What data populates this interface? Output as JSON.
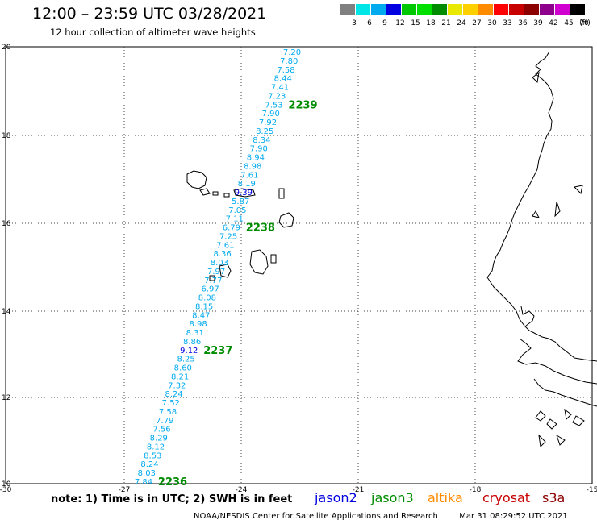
{
  "header": {
    "title": "12:00 – 23:59 UTC 03/28/2021",
    "subtitle": "12 hour collection of altimeter wave heights"
  },
  "colorbar": {
    "unit": "(ft)",
    "bins": [
      {
        "color": "#808080",
        "label": "3"
      },
      {
        "color": "#00e5e5",
        "label": "6"
      },
      {
        "color": "#00aaee",
        "label": "9"
      },
      {
        "color": "#0000e0",
        "label": "12"
      },
      {
        "color": "#00c800",
        "label": "15"
      },
      {
        "color": "#00e000",
        "label": "18"
      },
      {
        "color": "#008c00",
        "label": "21"
      },
      {
        "color": "#e8e800",
        "label": "24"
      },
      {
        "color": "#ffd000",
        "label": "27"
      },
      {
        "color": "#ff8c00",
        "label": "30"
      },
      {
        "color": "#ff0000",
        "label": "33"
      },
      {
        "color": "#c80000",
        "label": "36"
      },
      {
        "color": "#8c0000",
        "label": "39"
      },
      {
        "color": "#8c008c",
        "label": "42"
      },
      {
        "color": "#d000d0",
        "label": "45"
      },
      {
        "color": "#000000",
        "label": "70"
      }
    ]
  },
  "axes": {
    "x_ticks": [
      "-30",
      "-27",
      "-24",
      "-21",
      "-18",
      "-15"
    ],
    "y_ticks": [
      "20",
      "18",
      "16",
      "14",
      "12",
      "10"
    ]
  },
  "track": {
    "color_default": "#00aaee",
    "color_high": "#0000e0",
    "points": [
      "7.20",
      "7.80",
      "7.58",
      "8.44",
      "7.41",
      "7.23",
      "7.53",
      "7.90",
      "7.92",
      "8.25",
      "8.34",
      "7.90",
      "8.94",
      "8.98",
      "7.61",
      "8.19",
      "9.39",
      "5.87",
      "7.05",
      "7.11",
      "6.79",
      "7.25",
      "7.61",
      "8.36",
      "8.03",
      "7.97",
      "7.77",
      "6.97",
      "8.08",
      "8.15",
      "8.47",
      "8.98",
      "8.31",
      "8.86",
      "9.12",
      "8.25",
      "8.60",
      "8.21",
      "7.32",
      "8.24",
      "7.52",
      "7.58",
      "7.79",
      "7.56",
      "8.29",
      "8.12",
      "8.53",
      "8.24",
      "8.03",
      "7.84"
    ],
    "high_points": [
      16,
      34
    ]
  },
  "time_labels": [
    {
      "text": "2239",
      "color": "#008c00"
    },
    {
      "text": "2238",
      "color": "#008c00"
    },
    {
      "text": "2237",
      "color": "#008c00"
    },
    {
      "text": "2236",
      "color": "#008c00"
    }
  ],
  "legend": {
    "note": "note: 1) Time is in UTC; 2) SWH is in feet",
    "missions": [
      {
        "name": "jason2",
        "color": "#0000e0"
      },
      {
        "name": "jason3",
        "color": "#008c00"
      },
      {
        "name": "altika",
        "color": "#ff8c00"
      },
      {
        "name": "cryosat",
        "color": "#c80000"
      },
      {
        "name": "s3a",
        "color": "#8c0000"
      }
    ]
  },
  "footer": {
    "credit": "NOAA/NESDIS Center for Satellite Applications and Research",
    "timestamp": "Mar 31 08:29:52 UTC 2021"
  }
}
